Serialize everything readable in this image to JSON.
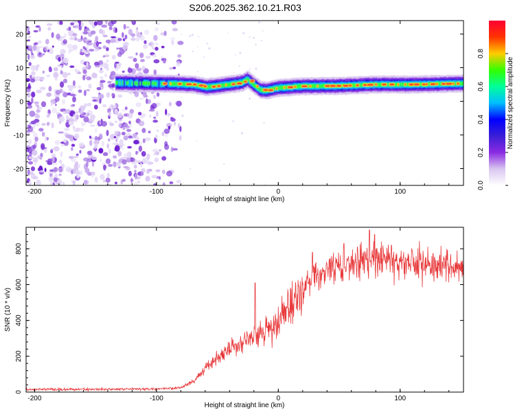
{
  "title": "S206.2025.362.10.21.R03",
  "chart_data": [
    {
      "type": "heatmap",
      "name": "spectrogram",
      "xlabel": "Height of straight line (km)",
      "ylabel": "Frequency (Hz)",
      "xlim": [
        -207,
        152
      ],
      "ylim": [
        -25,
        24
      ],
      "xticks": [
        -200,
        -100,
        0,
        100
      ],
      "yticks": [
        -20,
        -10,
        0,
        10,
        20
      ],
      "colorbar": {
        "label": "Normalized spectral amplitude",
        "range": [
          0,
          1
        ],
        "ticks": [
          0.0,
          0.2,
          0.4,
          0.6,
          0.8
        ],
        "tick_labels": [
          "0.0",
          "0.2",
          "0.4",
          "0.6",
          "0.8"
        ],
        "colors": [
          "#ffffff",
          "#d9c6f0",
          "#8a2be2",
          "#3b1fd6",
          "#0000ff",
          "#00bfff",
          "#00ff99",
          "#33ff00",
          "#ffcc00",
          "#ff3300",
          "#ff0033"
        ]
      },
      "noise_region": {
        "x_from": -207,
        "x_to": -80
      },
      "ridge": [
        {
          "x": -133,
          "y": 5.5
        },
        {
          "x": -100,
          "y": 5.3
        },
        {
          "x": -85,
          "y": 5.2
        },
        {
          "x": -70,
          "y": 5.0
        },
        {
          "x": -58,
          "y": 4.2
        },
        {
          "x": -45,
          "y": 4.8
        },
        {
          "x": -30,
          "y": 5.5
        },
        {
          "x": -25,
          "y": 6.5
        },
        {
          "x": -20,
          "y": 5.0
        },
        {
          "x": -15,
          "y": 3.5
        },
        {
          "x": -10,
          "y": 3.2
        },
        {
          "x": 0,
          "y": 4.0
        },
        {
          "x": 20,
          "y": 4.5
        },
        {
          "x": 50,
          "y": 4.6
        },
        {
          "x": 80,
          "y": 5.0
        },
        {
          "x": 110,
          "y": 5.0
        },
        {
          "x": 152,
          "y": 5.3
        }
      ]
    },
    {
      "type": "line",
      "name": "snr",
      "xlabel": "Height of straight line (km)",
      "ylabel": "SNR (10 * v/v)",
      "xlim": [
        -207,
        152
      ],
      "ylim": [
        0,
        920
      ],
      "xticks": [
        -200,
        -100,
        0,
        100
      ],
      "yticks": [
        0,
        200,
        400,
        600,
        800
      ],
      "series": [
        {
          "name": "SNR",
          "color": "#e8383a",
          "trend": [
            {
              "x": -207,
              "y": 15
            },
            {
              "x": -150,
              "y": 16
            },
            {
              "x": -100,
              "y": 18
            },
            {
              "x": -80,
              "y": 25
            },
            {
              "x": -70,
              "y": 60
            },
            {
              "x": -60,
              "y": 130
            },
            {
              "x": -50,
              "y": 190
            },
            {
              "x": -40,
              "y": 240
            },
            {
              "x": -30,
              "y": 270
            },
            {
              "x": -20,
              "y": 300
            },
            {
              "x": -10,
              "y": 350
            },
            {
              "x": 0,
              "y": 410
            },
            {
              "x": 10,
              "y": 480
            },
            {
              "x": 20,
              "y": 560
            },
            {
              "x": 30,
              "y": 640
            },
            {
              "x": 45,
              "y": 690
            },
            {
              "x": 60,
              "y": 720
            },
            {
              "x": 75,
              "y": 730
            },
            {
              "x": 100,
              "y": 720
            },
            {
              "x": 125,
              "y": 700
            },
            {
              "x": 152,
              "y": 700
            }
          ],
          "peaks": [
            {
              "x": -19,
              "y": 610
            },
            {
              "x": 28,
              "y": 780
            },
            {
              "x": 54,
              "y": 830
            },
            {
              "x": 75,
              "y": 905
            },
            {
              "x": 79,
              "y": 880
            },
            {
              "x": 93,
              "y": 820
            },
            {
              "x": 110,
              "y": 790
            }
          ]
        }
      ]
    }
  ]
}
